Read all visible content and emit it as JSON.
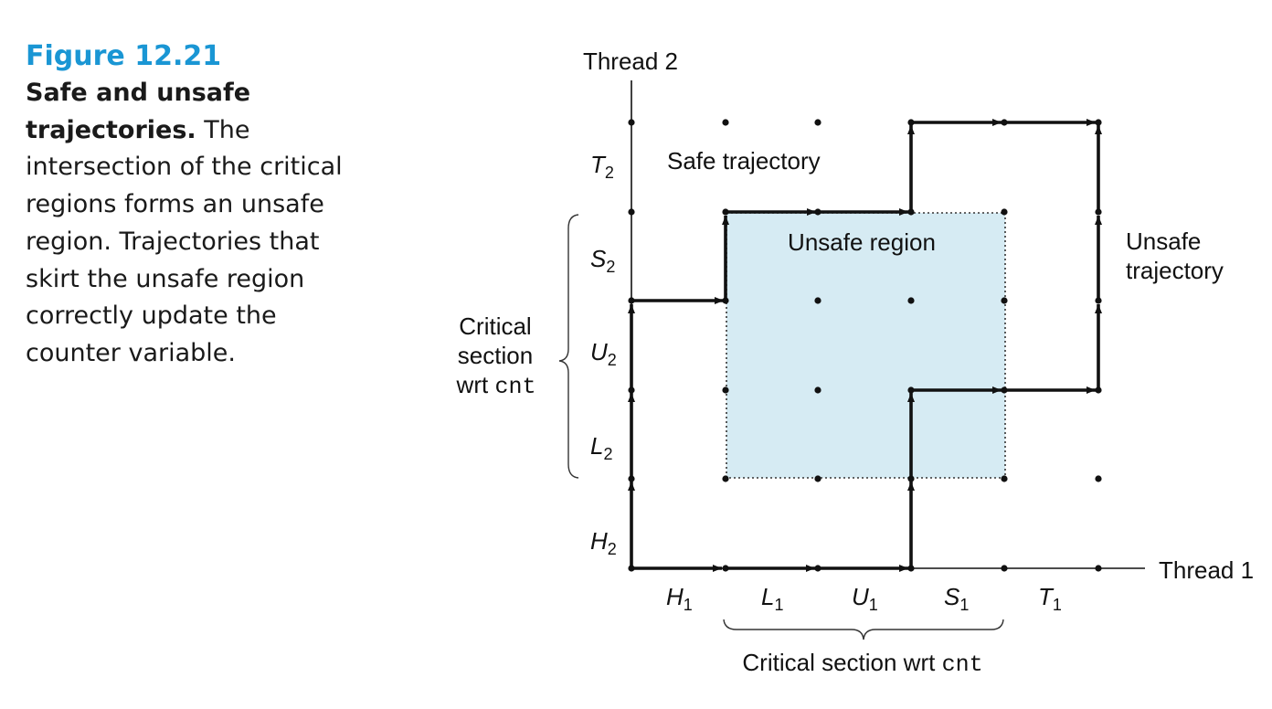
{
  "caption": {
    "figure_number": "Figure 12.21",
    "title": "Safe and unsafe trajectories.",
    "body": " The intersection of the critical regions forms an unsafe region. Trajectories that skirt the unsafe region correctly update the counter variable."
  },
  "diagram": {
    "x_axis_label": "Thread 1",
    "y_axis_label": "Thread 2",
    "x_segments": [
      {
        "letter": "H",
        "sub": "1"
      },
      {
        "letter": "L",
        "sub": "1"
      },
      {
        "letter": "U",
        "sub": "1"
      },
      {
        "letter": "S",
        "sub": "1"
      },
      {
        "letter": "T",
        "sub": "1"
      }
    ],
    "y_segments": [
      {
        "letter": "H",
        "sub": "2"
      },
      {
        "letter": "L",
        "sub": "2"
      },
      {
        "letter": "U",
        "sub": "2"
      },
      {
        "letter": "S",
        "sub": "2"
      },
      {
        "letter": "T",
        "sub": "2"
      }
    ],
    "unsafe_region_label": "Unsafe region",
    "safe_trajectory_label": "Safe trajectory",
    "unsafe_trajectory_label": [
      "Unsafe",
      "trajectory"
    ],
    "x_critical_label": "Critical section wrt ",
    "x_critical_code": "cnt",
    "y_critical_label": [
      "Critical",
      "section",
      "wrt "
    ],
    "y_critical_code": "cnt",
    "colors": {
      "unsafe_fill": "#d6ebf3",
      "caption_accent": "#1a96d4",
      "ink": "#111111"
    }
  }
}
